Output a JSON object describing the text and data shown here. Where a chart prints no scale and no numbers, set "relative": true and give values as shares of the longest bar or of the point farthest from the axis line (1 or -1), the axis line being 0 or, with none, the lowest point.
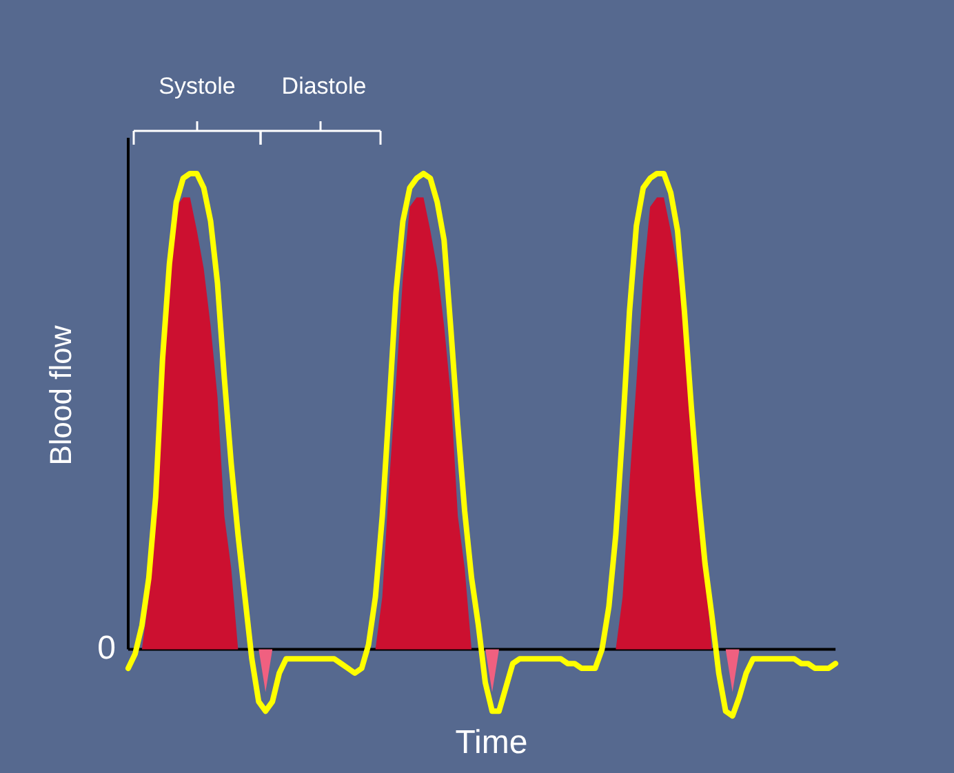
{
  "chart_data": {
    "type": "line",
    "relative": true,
    "xlabel": "Time",
    "ylabel": "Blood flow",
    "tick_labels": false,
    "annotations": [
      "Systole",
      "Diastole",
      "0"
    ],
    "categories": [
      null,
      null,
      null,
      null,
      null,
      null,
      null,
      null,
      null,
      null,
      null,
      null,
      null,
      null,
      null,
      null,
      null,
      null,
      null,
      null,
      null,
      null,
      null,
      null,
      null,
      null,
      null,
      null,
      null,
      null,
      null,
      null,
      null,
      null,
      null,
      null,
      null,
      null,
      null,
      null,
      null,
      null,
      null,
      null,
      null,
      null,
      null,
      null,
      null,
      null,
      null,
      null,
      null,
      null,
      null,
      null,
      null,
      null,
      null,
      null,
      null,
      null,
      null,
      null,
      null,
      null,
      null,
      null,
      null,
      null,
      null,
      null,
      null,
      null,
      null,
      null,
      null,
      null,
      null,
      null,
      null,
      null,
      null,
      null,
      null,
      null,
      null,
      null,
      null,
      null,
      null,
      null,
      null,
      null,
      null,
      null,
      null,
      null,
      null,
      null,
      null,
      null,
      null,
      null
    ],
    "series": [
      {
        "type": "area",
        "color": "#cc1030",
        "values": [
          null,
          null,
          0,
          0.11,
          0.35,
          0.56,
          0.78,
          0.93,
          0.95,
          0.95,
          0.88,
          0.8,
          0.68,
          0.53,
          0.28,
          0.17,
          0,
          null,
          null,
          null,
          null,
          null,
          null,
          null,
          null,
          null,
          null,
          null,
          null,
          null,
          null,
          null,
          null,
          null,
          null,
          null,
          0,
          0.11,
          0.35,
          0.56,
          0.78,
          0.93,
          0.95,
          0.95,
          0.88,
          0.8,
          0.68,
          0.53,
          0.28,
          0.17,
          0,
          null,
          null,
          null,
          null,
          null,
          null,
          null,
          null,
          null,
          null,
          null,
          null,
          null,
          null,
          null,
          null,
          null,
          null,
          null,
          null,
          0,
          0.11,
          0.35,
          0.56,
          0.78,
          0.93,
          0.95,
          0.95,
          0.88,
          0.8,
          0.68,
          0.53,
          0.28,
          0.17,
          0,
          null,
          null,
          null,
          null,
          null,
          null,
          null,
          null,
          null,
          null,
          null,
          null,
          null,
          null,
          null,
          null,
          null,
          null
        ]
      },
      {
        "type": "area",
        "color": "#f06080",
        "values": [
          null,
          null,
          null,
          null,
          null,
          null,
          null,
          null,
          null,
          null,
          null,
          null,
          null,
          null,
          null,
          null,
          null,
          null,
          null,
          0,
          -0.09,
          0,
          null,
          null,
          null,
          null,
          null,
          null,
          null,
          null,
          null,
          null,
          null,
          null,
          null,
          null,
          null,
          null,
          null,
          null,
          null,
          null,
          null,
          null,
          null,
          null,
          null,
          null,
          null,
          null,
          null,
          null,
          0,
          -0.09,
          0,
          null,
          null,
          null,
          null,
          null,
          null,
          null,
          null,
          null,
          null,
          null,
          null,
          null,
          null,
          null,
          null,
          null,
          null,
          null,
          null,
          null,
          null,
          null,
          null,
          null,
          null,
          null,
          null,
          null,
          null,
          null,
          null,
          0,
          -0.09,
          0,
          null,
          null,
          null,
          null,
          null,
          null,
          null,
          null,
          null,
          null,
          null,
          null,
          null,
          null
        ]
      },
      {
        "color": "#ffff00",
        "values": [
          -0.04,
          -0.01,
          0.05,
          0.15,
          0.32,
          0.61,
          0.81,
          0.94,
          0.99,
          1.0,
          1.0,
          0.97,
          0.9,
          0.77,
          0.57,
          0.39,
          0.24,
          0.11,
          -0.02,
          -0.11,
          -0.13,
          -0.11,
          -0.05,
          -0.02,
          -0.02,
          -0.02,
          -0.02,
          -0.02,
          -0.02,
          -0.02,
          -0.02,
          -0.03,
          -0.04,
          -0.05,
          -0.04,
          0.01,
          0.11,
          0.28,
          0.51,
          0.75,
          0.9,
          0.97,
          0.99,
          1.0,
          0.99,
          0.94,
          0.86,
          0.67,
          0.47,
          0.29,
          0.15,
          0.05,
          -0.07,
          -0.13,
          -0.13,
          -0.08,
          -0.03,
          -0.02,
          -0.02,
          -0.02,
          -0.02,
          -0.02,
          -0.02,
          -0.02,
          -0.03,
          -0.03,
          -0.04,
          -0.04,
          -0.04,
          0.0,
          0.09,
          0.24,
          0.46,
          0.71,
          0.89,
          0.97,
          0.99,
          1.0,
          1.0,
          0.96,
          0.88,
          0.71,
          0.51,
          0.33,
          0.18,
          0.07,
          -0.05,
          -0.13,
          -0.14,
          -0.1,
          -0.05,
          -0.02,
          -0.02,
          -0.02,
          -0.02,
          -0.02,
          -0.02,
          -0.02,
          -0.03,
          -0.03,
          -0.04,
          -0.04,
          -0.04,
          -0.03
        ]
      }
    ]
  }
}
